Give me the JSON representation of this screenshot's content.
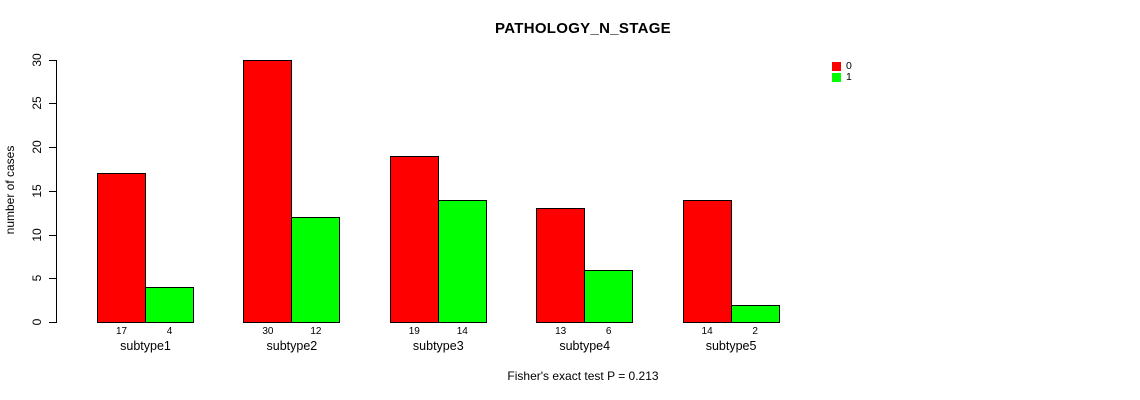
{
  "chart_data": {
    "type": "bar",
    "title": "PATHOLOGY_N_STAGE",
    "ylabel": "number of cases",
    "xlabel": "",
    "footnote": "Fisher's exact test P = 0.213",
    "categories": [
      "subtype1",
      "subtype2",
      "subtype3",
      "subtype4",
      "subtype5"
    ],
    "series": [
      {
        "name": "0",
        "color": "#FF0000",
        "values": [
          17,
          30,
          19,
          13,
          14
        ]
      },
      {
        "name": "1",
        "color": "#00FF00",
        "values": [
          4,
          12,
          14,
          6,
          2
        ]
      }
    ],
    "ylim": [
      0,
      30
    ],
    "yticks": [
      0,
      5,
      10,
      15,
      20,
      25,
      30
    ],
    "grid": false,
    "legend_position": "top-right",
    "bar_value_labels": true
  },
  "colors": {
    "background": "#FFFFFF",
    "axis": "#000000",
    "text": "#000000",
    "bar_border": "#000000"
  }
}
